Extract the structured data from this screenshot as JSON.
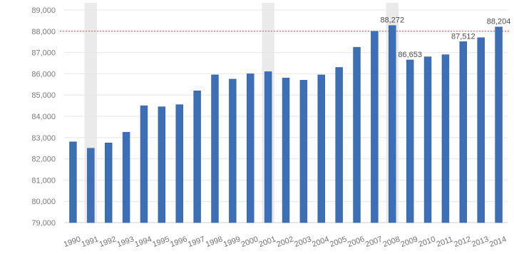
{
  "chart_data": {
    "type": "bar",
    "categories": [
      "1990",
      "1991",
      "1992",
      "1993",
      "1994",
      "1995",
      "1996",
      "1997",
      "1998",
      "1999",
      "2000",
      "2001",
      "2002",
      "2003",
      "2004",
      "2005",
      "2006",
      "2007",
      "2008",
      "2009",
      "2010",
      "2011",
      "2012",
      "2013",
      "2014"
    ],
    "values": [
      82.8,
      82.5,
      82.75,
      83.25,
      84.5,
      84.45,
      84.55,
      85.2,
      85.95,
      85.75,
      86.0,
      86.1,
      85.8,
      85.7,
      85.95,
      86.3,
      87.25,
      88.0,
      88.272,
      86.653,
      86.8,
      86.9,
      87.512,
      87.7,
      88.204
    ],
    "ytick_labels": [
      "79,000",
      "80,000",
      "81,000",
      "82,000",
      "83,000",
      "84,000",
      "85,000",
      "86,000",
      "87,000",
      "88,000",
      "89,000"
    ],
    "ylim": [
      79,
      89
    ],
    "data_labels": [
      {
        "index": 18,
        "text": "88,272"
      },
      {
        "index": 19,
        "text": "86,653"
      },
      {
        "index": 22,
        "text": "87,512"
      },
      {
        "index": 24,
        "text": "88,204"
      }
    ],
    "reference_line": {
      "y": 88.0,
      "style": "dotted",
      "color": "#d9534f"
    },
    "shaded_regions": [
      {
        "from_index": 1,
        "to_index": 1
      },
      {
        "from_index": 11,
        "to_index": 11
      },
      {
        "from_index": 18,
        "to_index": 18
      }
    ],
    "grid": true,
    "colors": {
      "bar": "#3d6fb6",
      "bar_edge": "#2f5d9f",
      "grid": "#e6e6e6",
      "shade": "#d8d8d8"
    }
  }
}
